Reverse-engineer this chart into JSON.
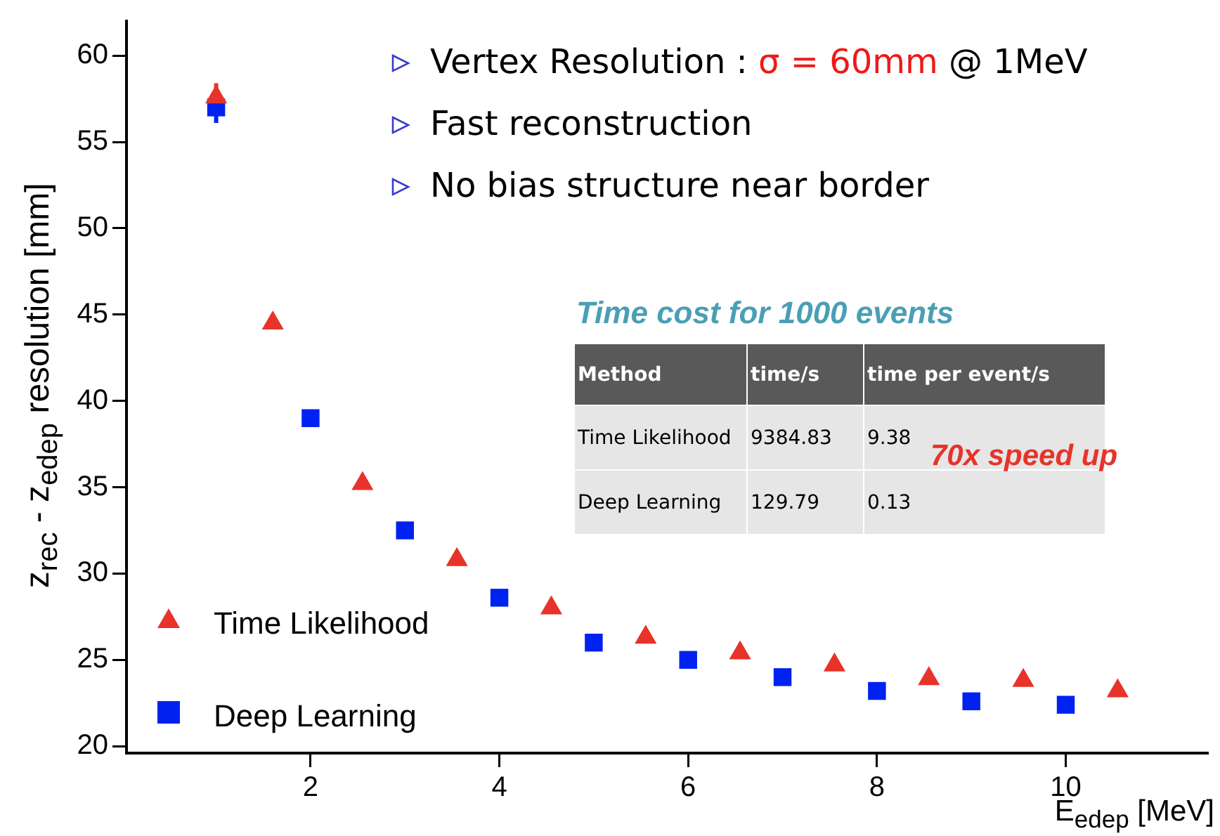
{
  "chart_data": {
    "type": "scatter",
    "xlabel": "E$_{edep}$ [MeV]",
    "ylabel": "z$_{rec}$ - z$_{edep}$ resolution [mm]",
    "xlim": [
      0.05,
      11.5
    ],
    "xticks": [
      2,
      4,
      6,
      8,
      10
    ],
    "ylim": [
      19.6,
      62
    ],
    "yticks": [
      20,
      25,
      30,
      35,
      40,
      45,
      50,
      55,
      60
    ],
    "grid": false,
    "legend": "bottom left",
    "series": [
      {
        "name": "Time Likelihood",
        "color": "#e8332a",
        "marker": "triangle",
        "x": [
          1,
          1.6,
          2.55,
          3.55,
          4.55,
          5.55,
          6.55,
          7.55,
          8.55,
          9.55,
          10.55
        ],
        "values": [
          57.6,
          44.5,
          35.2,
          30.8,
          28.0,
          26.3,
          25.4,
          24.7,
          23.9,
          23.8,
          23.2
        ],
        "errors": [
          0.8,
          null,
          null,
          null,
          null,
          null,
          null,
          null,
          null,
          null,
          null
        ]
      },
      {
        "name": "Deep Learning",
        "color": "#0022f0",
        "marker": "square",
        "x": [
          1,
          2,
          3,
          4,
          5,
          6,
          7,
          8,
          9,
          10
        ],
        "values": [
          57.0,
          39.0,
          32.5,
          28.6,
          26.0,
          25.0,
          24.0,
          23.2,
          22.6,
          22.4
        ],
        "errors": [
          0.9,
          null,
          null,
          null,
          null,
          null,
          null,
          null,
          null,
          null
        ]
      }
    ],
    "annotations": [
      "Vertex Resolution :",
      "σ = 60mm",
      "@ 1MeV",
      "Fast reconstruction",
      "No bias structure near border",
      "Time cost for 1000 events",
      "Method",
      "time/s",
      "time per event/s",
      "Time Likelihood",
      "9384.83",
      "9.38",
      "Deep Learning",
      "129.79",
      "0.13",
      "70x speed up"
    ]
  }
}
